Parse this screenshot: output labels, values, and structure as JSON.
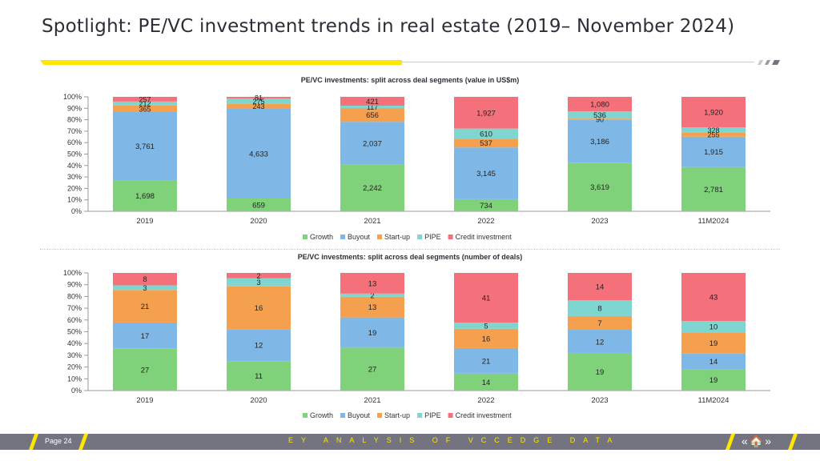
{
  "header": {
    "title": "Spotlight: PE/VC investment trends in real estate (2019– November 2024)"
  },
  "footer": {
    "page": "Page 24",
    "source": "EY ANALYSIS OF VCCEDGE DATA",
    "nav_icons": "«🏠»"
  },
  "colors": {
    "Growth": "#7fd17a",
    "Buyout": "#7fb8e6",
    "Start-up": "#f5a04e",
    "PIPE": "#7fd6d0",
    "Credit investment": "#f4707a",
    "accent": "#ffe600"
  },
  "chart_data": [
    {
      "type": "bar",
      "stacked": "percent",
      "title": "PE/VC investments: split across deal segments (value in US$m)",
      "categories": [
        "2019",
        "2020",
        "2021",
        "2022",
        "2023",
        "11M2024"
      ],
      "yticks": [
        "0%",
        "10%",
        "20%",
        "30%",
        "40%",
        "50%",
        "60%",
        "70%",
        "80%",
        "90%",
        "100%"
      ],
      "legend_position": "bottom",
      "series": [
        {
          "name": "Growth",
          "values": [
            1698,
            659,
            2242,
            734,
            3619,
            2781
          ],
          "labels": [
            "1,698",
            "659",
            "2,242",
            "734",
            "3,619",
            "2,781"
          ]
        },
        {
          "name": "Buyout",
          "values": [
            3761,
            4633,
            2037,
            3145,
            3186,
            1915
          ],
          "labels": [
            "3,761",
            "4,633",
            "2,037",
            "3,145",
            "3,186",
            "1,915"
          ]
        },
        {
          "name": "Start-up",
          "values": [
            365,
            243,
            656,
            537,
            90,
            255
          ],
          "labels": [
            "365",
            "243",
            "656",
            "537",
            "90",
            "255"
          ]
        },
        {
          "name": "PIPE",
          "values": [
            212,
            275,
            117,
            610,
            536,
            328
          ],
          "labels": [
            "212",
            "275",
            "117",
            "610",
            "536",
            "328"
          ]
        },
        {
          "name": "Credit investment",
          "values": [
            257,
            81,
            421,
            1927,
            1080,
            1920
          ],
          "labels": [
            "257",
            "81",
            "421",
            "1,927",
            "1,080",
            "1,920"
          ]
        }
      ]
    },
    {
      "type": "bar",
      "stacked": "percent",
      "title": "PE/VC investments: split across deal segments (number of deals)",
      "categories": [
        "2019",
        "2020",
        "2021",
        "2022",
        "2023",
        "11M2024"
      ],
      "yticks": [
        "0%",
        "10%",
        "20%",
        "30%",
        "40%",
        "50%",
        "60%",
        "70%",
        "80%",
        "90%",
        "100%"
      ],
      "legend_position": "bottom",
      "series": [
        {
          "name": "Growth",
          "values": [
            27,
            11,
            27,
            14,
            19,
            19
          ],
          "labels": [
            "27",
            "11",
            "27",
            "14",
            "19",
            "19"
          ]
        },
        {
          "name": "Buyout",
          "values": [
            17,
            12,
            19,
            21,
            12,
            14
          ],
          "labels": [
            "17",
            "12",
            "19",
            "21",
            "12",
            "14"
          ]
        },
        {
          "name": "Start-up",
          "values": [
            21,
            16,
            13,
            16,
            7,
            19
          ],
          "labels": [
            "21",
            "16",
            "13",
            "16",
            "7",
            "19"
          ]
        },
        {
          "name": "PIPE",
          "values": [
            3,
            3,
            2,
            5,
            8,
            10
          ],
          "labels": [
            "3",
            "3",
            "2",
            "5",
            "8",
            "10"
          ]
        },
        {
          "name": "Credit investment",
          "values": [
            8,
            2,
            13,
            41,
            14,
            43
          ],
          "labels": [
            "8",
            "2",
            "13",
            "41",
            "14",
            "43"
          ]
        }
      ]
    }
  ]
}
